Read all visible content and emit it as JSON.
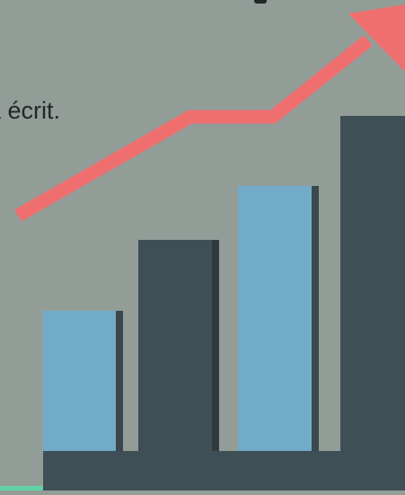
{
  "caption": {
    "text": "a écrit."
  },
  "colors": {
    "background": "#939d98",
    "bar_light": "#72abc8",
    "bar_dark": "#3f4f56",
    "bar_shadow": "#2f3b40",
    "arrow": "#ef6f6f",
    "accent_strip": "#5fd3a5"
  },
  "illustration": {
    "bars": [
      {
        "name": "bar-1",
        "tone": "light"
      },
      {
        "name": "bar-2",
        "tone": "dark"
      },
      {
        "name": "bar-3",
        "tone": "light"
      },
      {
        "name": "bar-4",
        "tone": "dark"
      }
    ],
    "arrow_icon": "trend-up-arrow-icon"
  }
}
